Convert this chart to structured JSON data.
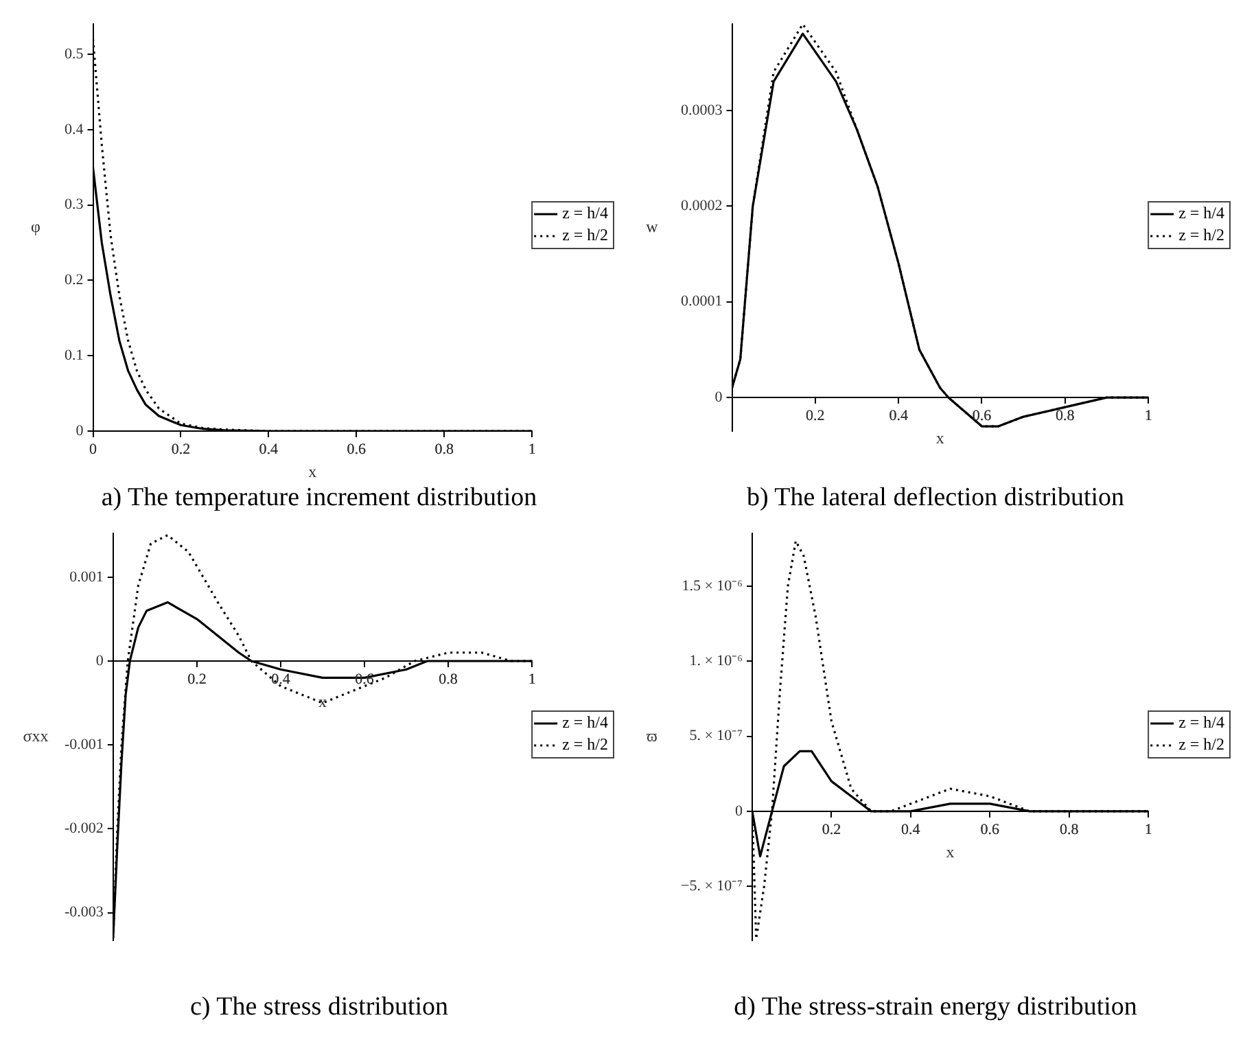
{
  "chart_data": [
    {
      "type": "line",
      "title": "a) The temperature increment distribution",
      "xlabel": "x",
      "ylabel": "φ",
      "xlim": [
        0,
        1
      ],
      "ylim": [
        0,
        0.54
      ],
      "xticks": [
        0,
        0.2,
        0.4,
        0.6,
        0.8,
        1
      ],
      "yticks": [
        0,
        0.1,
        0.2,
        0.3,
        0.4,
        0.5
      ],
      "legend": "right",
      "marker": "none",
      "series": [
        {
          "name": "z = h/4",
          "color": "#000000",
          "line_style": "solid",
          "x": [
            0,
            0.02,
            0.04,
            0.06,
            0.08,
            0.1,
            0.12,
            0.15,
            0.2,
            0.25,
            0.3,
            0.4,
            0.6,
            0.8,
            1
          ],
          "values": [
            0.35,
            0.25,
            0.18,
            0.12,
            0.08,
            0.055,
            0.035,
            0.02,
            0.008,
            0.003,
            0.001,
            0,
            0,
            0,
            0
          ]
        },
        {
          "name": "z = h/2",
          "color": "#000000",
          "line_style": "dotted",
          "x": [
            0,
            0.02,
            0.04,
            0.06,
            0.08,
            0.1,
            0.12,
            0.15,
            0.2,
            0.25,
            0.3,
            0.4,
            0.6,
            0.8,
            1
          ],
          "values": [
            0.52,
            0.38,
            0.26,
            0.18,
            0.12,
            0.08,
            0.055,
            0.03,
            0.01,
            0.004,
            0.002,
            0,
            0,
            0,
            0
          ]
        }
      ]
    },
    {
      "type": "line",
      "title": "b) The lateral deflection distribution",
      "xlabel": "x",
      "ylabel": "w",
      "xlim": [
        0,
        1
      ],
      "ylim": [
        -3.5e-05,
        0.00039
      ],
      "xticks": [
        0.2,
        0.4,
        0.6,
        0.8,
        1
      ],
      "yticks": [
        0,
        0.0001,
        0.0002,
        0.0003
      ],
      "legend": "right",
      "marker": "none",
      "series": [
        {
          "name": "z = h/4",
          "color": "#000000",
          "line_style": "solid",
          "x": [
            0,
            0.02,
            0.05,
            0.1,
            0.17,
            0.25,
            0.3,
            0.35,
            0.4,
            0.45,
            0.5,
            0.52,
            0.6,
            0.64,
            0.7,
            0.8,
            0.9,
            1
          ],
          "values": [
            1e-05,
            4e-05,
            0.0002,
            0.00033,
            0.00038,
            0.00033,
            0.00028,
            0.00022,
            0.00014,
            5e-05,
            1e-05,
            0,
            -3e-05,
            -3e-05,
            -2e-05,
            -1e-05,
            0,
            0
          ]
        },
        {
          "name": "z = h/2",
          "color": "#000000",
          "line_style": "dotted",
          "x": [
            0,
            0.02,
            0.05,
            0.1,
            0.17,
            0.25,
            0.3,
            0.35,
            0.4,
            0.45,
            0.5,
            0.52,
            0.6,
            0.64,
            0.7,
            0.8,
            0.9,
            1
          ],
          "values": [
            1e-05,
            4e-05,
            0.0002,
            0.00034,
            0.00039,
            0.00034,
            0.00028,
            0.00022,
            0.00014,
            5e-05,
            1e-05,
            0,
            -3e-05,
            -3e-05,
            -2e-05,
            -1e-05,
            0,
            0
          ]
        }
      ]
    },
    {
      "type": "line",
      "title": "c) The stress distribution",
      "xlabel": "x",
      "ylabel": "σxx",
      "xlim": [
        0,
        1
      ],
      "ylim": [
        -0.00333,
        0.00152
      ],
      "xticks": [
        0.2,
        0.4,
        0.6,
        0.8,
        1
      ],
      "yticks": [
        -0.003,
        -0.002,
        -0.001,
        0,
        0.001
      ],
      "legend": "right",
      "marker": "none",
      "series": [
        {
          "name": "z = h/4",
          "color": "#000000",
          "line_style": "solid",
          "x": [
            0,
            0.01,
            0.02,
            0.03,
            0.04,
            0.06,
            0.08,
            0.13,
            0.2,
            0.25,
            0.3,
            0.33,
            0.4,
            0.5,
            0.6,
            0.7,
            0.75,
            0.8,
            0.9,
            1
          ],
          "values": [
            -0.0033,
            -0.0022,
            -0.0012,
            -0.0004,
            0,
            0.0004,
            0.0006,
            0.0007,
            0.0005,
            0.0003,
            0.0001,
            0,
            -0.0001,
            -0.0002,
            -0.0002,
            -0.0001,
            0,
            0,
            0,
            0
          ]
        },
        {
          "name": "z = h/2",
          "color": "#000000",
          "line_style": "dotted",
          "x": [
            0,
            0.01,
            0.02,
            0.035,
            0.06,
            0.09,
            0.13,
            0.18,
            0.25,
            0.3,
            0.33,
            0.4,
            0.45,
            0.5,
            0.55,
            0.65,
            0.72,
            0.8,
            0.88,
            0.95,
            1
          ],
          "values": [
            -0.0033,
            -0.002,
            -0.001,
            0,
            0.0009,
            0.0014,
            0.0015,
            0.0013,
            0.0007,
            0.0003,
            0,
            -0.0003,
            -0.0004,
            -0.0005,
            -0.0004,
            -0.0002,
            0,
            0.0001,
            0.0001,
            0,
            0
          ]
        }
      ]
    },
    {
      "type": "line",
      "title": "d) The stress-strain energy distribution",
      "xlabel": "x",
      "ylabel": "ϖ",
      "xlim": [
        0,
        1
      ],
      "ylim": [
        -8.6e-07,
        1.85e-06
      ],
      "xticks": [
        0.2,
        0.4,
        0.6,
        0.8,
        1
      ],
      "yticks": [
        {
          "value": -5e-07,
          "label": "−5. × 10⁻⁷"
        },
        0,
        {
          "value": 5e-07,
          "label": "5. × 10⁻⁷"
        },
        {
          "value": 1e-06,
          "label": "1. × 10⁻⁶"
        },
        {
          "value": 1.5e-06,
          "label": "1.5 × 10⁻⁶"
        }
      ],
      "legend": "right",
      "marker": "none",
      "series": [
        {
          "name": "z = h/4",
          "color": "#000000",
          "line_style": "solid",
          "x": [
            0,
            0.02,
            0.05,
            0.08,
            0.12,
            0.15,
            0.2,
            0.25,
            0.3,
            0.35,
            0.4,
            0.5,
            0.6,
            0.7,
            0.8,
            1
          ],
          "values": [
            0,
            -3e-07,
            0,
            3e-07,
            4e-07,
            4e-07,
            2e-07,
            1e-07,
            0,
            0,
            0,
            5e-08,
            5e-08,
            0,
            0,
            0
          ]
        },
        {
          "name": "z = h/2",
          "color": "#000000",
          "line_style": "dotted",
          "x": [
            0,
            0.01,
            0.03,
            0.05,
            0.07,
            0.09,
            0.11,
            0.13,
            0.16,
            0.2,
            0.25,
            0.3,
            0.35,
            0.4,
            0.5,
            0.6,
            0.7,
            0.8,
            1
          ],
          "values": [
            0,
            -8.5e-07,
            -5e-07,
            0,
            8e-07,
            1.5e-06,
            1.8e-06,
            1.7e-06,
            1.3e-06,
            6e-07,
            1.5e-07,
            0,
            0,
            5e-08,
            1.5e-07,
            1e-07,
            0,
            0,
            0
          ]
        }
      ]
    }
  ]
}
